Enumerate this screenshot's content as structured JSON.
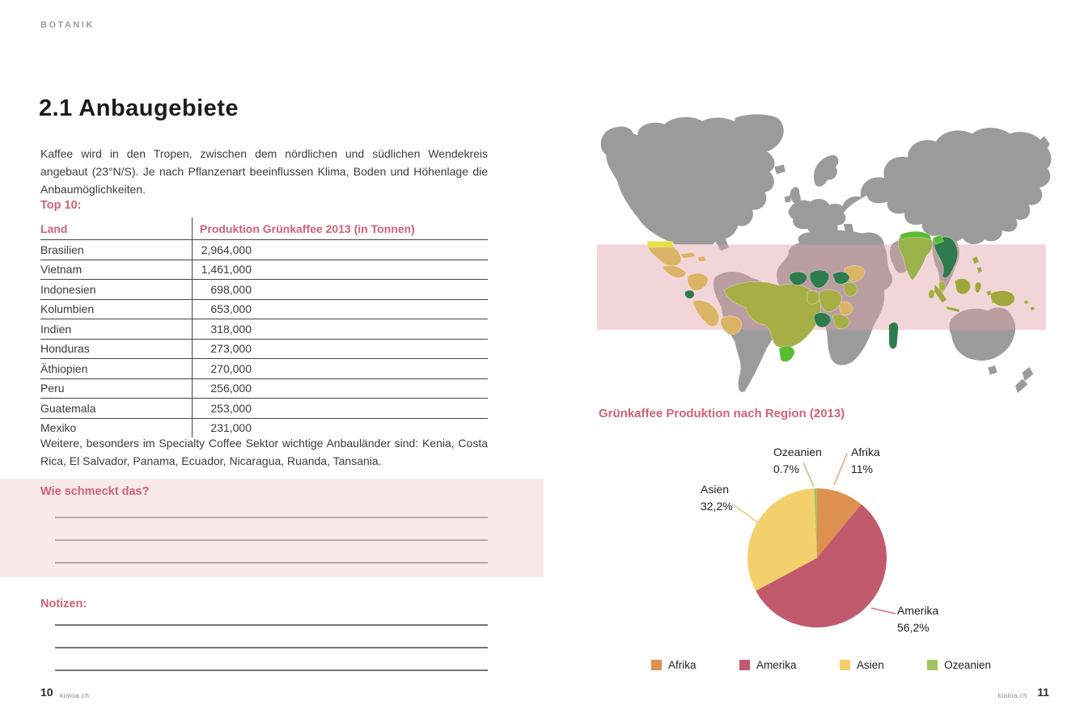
{
  "ui_colors": {
    "accent": "#d26176"
  },
  "page_left": {
    "header": "BOTANIK",
    "title": "2.1 Anbaugebiete",
    "intro": "Kaffee wird in den Tropen, zwischen dem nördlichen und südlichen Wendekreis angebaut (23°N/S). Je nach Pflanzenart beeinflussen Klima, Boden und Höhenlage die Anbaumöglichkeiten.",
    "table_label": "Top 10:",
    "table": {
      "columns": [
        "Land",
        "Produktion Grünkaffee 2013 (in Tonnen)"
      ],
      "rows": [
        [
          "Brasilien",
          "2,964,000"
        ],
        [
          "Vietnam",
          "1,461,000"
        ],
        [
          "Indonesien",
          "698,000"
        ],
        [
          "Kolumbien",
          "653,000"
        ],
        [
          "Indien",
          "318,000"
        ],
        [
          "Honduras",
          "273,000"
        ],
        [
          "Äthiopien",
          "270,000"
        ],
        [
          "Peru",
          "256,000"
        ],
        [
          "Guatemala",
          "253,000"
        ],
        [
          "Mexiko",
          "231,000"
        ]
      ]
    },
    "outro": "Weitere, besonders im Specialty Coffee Sektor wichtige Anbauländer sind: Kenia, Costa Rica, El Salvador, Panama, Ecuador, Nicaragua, Ruanda, Tansania.",
    "taste_heading": "Wie schmeckt das?",
    "notes_heading": "Notizen:",
    "footer": {
      "page_number": "10",
      "site": "kialoa.ch"
    }
  },
  "page_right": {
    "chart_heading": "Grünkaffee Produktion nach Region (2013)",
    "footer": {
      "site": "kialoa.ch",
      "page_number": "11"
    }
  },
  "map": {
    "land_color": "#9b9b9b",
    "tropic_band_color": "#e2a0a9",
    "country_colors": {
      "tan": "#dcb468",
      "yellow": "#e6e149",
      "olive": "#a6ae46",
      "olive_dark": "#a0a73d",
      "green_dark": "#2e7b4e",
      "green_bright": "#59bb32",
      "green_india": "#9bb24a"
    }
  },
  "chart_data": {
    "type": "pie",
    "title": "Grünkaffee Produktion nach Region (2013)",
    "categories": [
      "Afrika",
      "Amerika",
      "Asien",
      "Ozeanien"
    ],
    "values": [
      11,
      56.2,
      32.2,
      0.7
    ],
    "display_labels": [
      "11%",
      "56,2%",
      "32,2%",
      "0.7%"
    ],
    "colors": {
      "Afrika": "#de9050",
      "Amerika": "#c25a6d",
      "Asien": "#f4d06c",
      "Ozeanien": "#a2c362"
    },
    "leader_colors": {
      "Afrika": "#e8ab72",
      "Amerika": "#ca7386",
      "Asien": "#edca7d",
      "Ozeanien": "#b5cf82"
    },
    "direction": "clockwise",
    "start_angle_deg": 0,
    "legend_position": "bottom",
    "legend_labels": [
      "Afrika",
      "Amerika",
      "Asien",
      "Ozeanien"
    ]
  }
}
